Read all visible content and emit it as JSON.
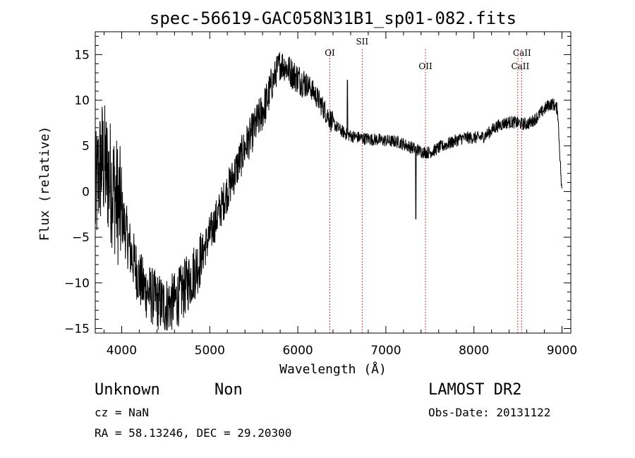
{
  "chart_data": {
    "type": "line",
    "title": "spec-56619-GAC058N31B1_sp01-082.fits",
    "xlabel": "Wavelength (Å)",
    "ylabel": "Flux (relative)",
    "xlim": [
      3700,
      9100
    ],
    "ylim": [
      -15.5,
      17.5
    ],
    "x_ticks": [
      4000,
      5000,
      6000,
      7000,
      8000,
      9000
    ],
    "y_ticks": [
      -15,
      -10,
      -5,
      0,
      5,
      10,
      15
    ],
    "grid": false,
    "legend": "none",
    "line_color": "#000000",
    "marker_color": "#cc3333",
    "series": [
      {
        "x": [
          3700,
          3740,
          3780,
          3820,
          3860,
          3900,
          3950,
          4000,
          4050,
          4100,
          4150,
          4200,
          4250,
          4300,
          4350,
          4400,
          4450,
          4500,
          4550,
          4600,
          4650,
          4700,
          4750,
          4800,
          4850,
          4900,
          4950,
          5000,
          5050,
          5100,
          5150,
          5200,
          5250,
          5300,
          5350,
          5400,
          5450,
          5500,
          5550,
          5600,
          5650,
          5700,
          5750,
          5800,
          5850,
          5900,
          5950,
          6000,
          6050,
          6100,
          6150,
          6200,
          6250,
          6300,
          6350,
          6400,
          6450,
          6500,
          6550,
          6600,
          6650,
          6700,
          6750,
          6800,
          6850,
          6900,
          6950,
          7000,
          7050,
          7100,
          7150,
          7200,
          7250,
          7300,
          7350,
          7400,
          7450,
          7500,
          7550,
          7600,
          7650,
          7700,
          7750,
          7800,
          7850,
          7900,
          7950,
          8000,
          8050,
          8100,
          8150,
          8200,
          8250,
          8300,
          8350,
          8400,
          8450,
          8500,
          8550,
          8600,
          8650,
          8700,
          8750,
          8800,
          8850,
          8900,
          8950,
          9000
        ],
        "y": [
          -1,
          2,
          3.5,
          2.5,
          1.5,
          0.5,
          -1,
          -2.5,
          -4.5,
          -6.5,
          -8,
          -9.5,
          -10.5,
          -11,
          -11.5,
          -12,
          -12.3,
          -12.5,
          -12.3,
          -12,
          -11.5,
          -10.8,
          -10,
          -9.2,
          -8.3,
          -7.3,
          -6,
          -4.8,
          -3.6,
          -2.4,
          -1.2,
          0,
          1.2,
          2.4,
          3.6,
          4.8,
          5.8,
          6.8,
          7.8,
          8.8,
          10,
          11.5,
          13,
          14,
          13.8,
          13.3,
          12.8,
          12.4,
          12.1,
          11.8,
          11.3,
          10.6,
          9.8,
          9,
          8.2,
          7.5,
          7,
          6.6,
          6.3,
          6.1,
          6,
          5.9,
          5.8,
          5.8,
          5.7,
          5.7,
          5.6,
          5.6,
          5.5,
          5.5,
          5.4,
          5.2,
          5,
          4.8,
          4.6,
          4.4,
          4.3,
          4.3,
          4.5,
          4.8,
          5,
          5.2,
          5.4,
          5.6,
          5.8,
          5.9,
          5.9,
          5.9,
          5.9,
          6,
          6.3,
          6.7,
          7.1,
          7.3,
          7.5,
          7.6,
          7.6,
          7.5,
          7.4,
          7.4,
          7.6,
          8,
          8.5,
          9,
          9.5,
          9.6,
          9,
          -0.5
        ]
      }
    ],
    "annotations": [
      {
        "label": "OI",
        "x": 6364
      },
      {
        "label": "SII",
        "x": 6731
      },
      {
        "label": "OII",
        "x": 7450
      },
      {
        "label": "CaII",
        "x": 8498
      },
      {
        "label": "CaII",
        "x": 8542
      }
    ]
  },
  "footer": {
    "class_text": "Unknown",
    "subclass_text": "Non",
    "cz_text": "cz = NaN",
    "radec_text": "RA =  58.13246, DEC =  29.20300",
    "survey_text": "LAMOST DR2",
    "obsdate_text": "Obs-Date: 20131122"
  }
}
